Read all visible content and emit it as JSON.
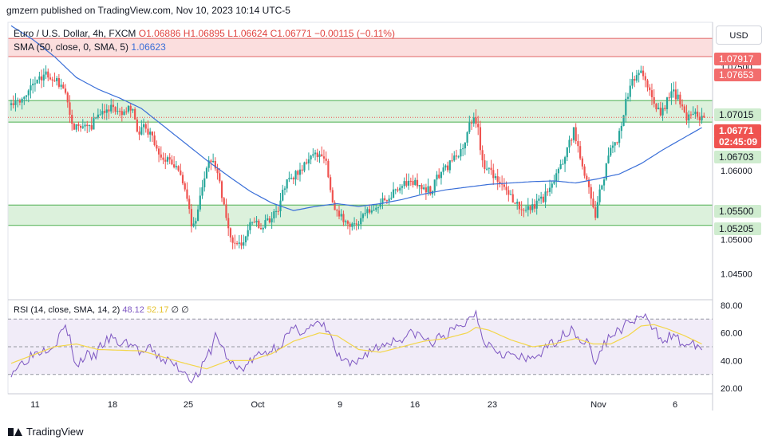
{
  "header": {
    "attribution": "gmzern published on TradingView.com, Nov 10, 2023 10:14 UTC-5"
  },
  "legend": {
    "symbol": "Euro / U.S. Dollar, 4h, FXCM",
    "open": "O1.06886",
    "high": "H1.06895",
    "low": "L1.06624",
    "close": "C1.06771",
    "change": "−0.00115 (−0.11%)",
    "sma_label": "SMA (50, close, 0, SMA, 5)",
    "sma_value": "1.06623",
    "rsi_label": "RSI (14, close, SMA, 14, 2)",
    "rsi_value": "48.12",
    "rsi_sma_value": "52.17",
    "rsi_extra": "∅ ∅"
  },
  "currency_button": "USD",
  "footer": {
    "brand": "TradingView"
  },
  "colors": {
    "up": "#26a69a",
    "down": "#ef5350",
    "sma": "#3a6fd8",
    "rsi": "#7e57c2",
    "rsi_ma": "#f3d64a",
    "resistance_zone": "#f6c3c3",
    "support_zone": "#c8ebc8",
    "price_badge": "#ef5350"
  },
  "chart_data": {
    "type": "candlestick",
    "price_axis": {
      "ticks": [
        "1.08000",
        "1.07500",
        "1.06000",
        "1.05000",
        "1.04500"
      ],
      "ylim": [
        1.0415,
        1.0815
      ]
    },
    "x_axis": {
      "ticks": [
        "11",
        "18",
        "25",
        "Oct",
        "9",
        "16",
        "23",
        "Nov",
        "6"
      ]
    },
    "zones": [
      {
        "kind": "resistance",
        "from": 1.07653,
        "to": 1.07917,
        "color": "red"
      },
      {
        "kind": "support",
        "from": 1.06703,
        "to": 1.07015,
        "color": "green"
      },
      {
        "kind": "support",
        "from": 1.05205,
        "to": 1.055,
        "color": "green"
      }
    ],
    "level_labels": [
      {
        "text": "1.07917",
        "value": 1.07917,
        "style": "red"
      },
      {
        "text": "1.07653",
        "value": 1.07653,
        "style": "red"
      },
      {
        "text": "1.07015",
        "value": 1.07015,
        "style": "green"
      },
      {
        "text": "1.06771",
        "value": 1.06771,
        "style": "price"
      },
      {
        "text": "02:45:09",
        "value": 1.0665,
        "style": "price"
      },
      {
        "text": "1.06703",
        "value": 1.06703,
        "style": "green"
      },
      {
        "text": "1.05500",
        "value": 1.055,
        "style": "green"
      },
      {
        "text": "1.05205",
        "value": 1.05205,
        "style": "green"
      }
    ],
    "last_price": 1.06771,
    "price_path": [
      [
        0,
        1.0695
      ],
      [
        6,
        1.0705
      ],
      [
        10,
        1.0725
      ],
      [
        14,
        1.0735
      ],
      [
        18,
        1.074
      ],
      [
        22,
        1.073
      ],
      [
        25,
        1.0722
      ],
      [
        28,
        1.0685
      ],
      [
        30,
        1.066
      ],
      [
        34,
        1.0668
      ],
      [
        38,
        1.0665
      ],
      [
        42,
        1.0687
      ],
      [
        45,
        1.069
      ],
      [
        48,
        1.0693
      ],
      [
        50,
        1.0683
      ],
      [
        54,
        1.069
      ],
      [
        57,
        1.0686
      ],
      [
        60,
        1.065
      ],
      [
        62,
        1.0665
      ],
      [
        66,
        1.0648
      ],
      [
        70,
        1.062
      ],
      [
        74,
        1.0615
      ],
      [
        78,
        1.06
      ],
      [
        80,
        1.058
      ],
      [
        82,
        1.056
      ],
      [
        84,
        1.0525
      ],
      [
        86,
        1.053
      ],
      [
        88,
        1.056
      ],
      [
        90,
        1.059
      ],
      [
        92,
        1.061
      ],
      [
        94,
        1.0615
      ],
      [
        96,
        1.06
      ],
      [
        98,
        1.0565
      ],
      [
        100,
        1.053
      ],
      [
        102,
        1.0505
      ],
      [
        104,
        1.0495
      ],
      [
        106,
        1.049
      ],
      [
        108,
        1.049
      ],
      [
        110,
        1.0512
      ],
      [
        112,
        1.053
      ],
      [
        114,
        1.0525
      ],
      [
        116,
        1.052
      ],
      [
        120,
        1.053
      ],
      [
        124,
        1.0545
      ],
      [
        127,
        1.058
      ],
      [
        130,
        1.059
      ],
      [
        134,
        1.0598
      ],
      [
        138,
        1.0615
      ],
      [
        142,
        1.0625
      ],
      [
        146,
        1.061
      ],
      [
        150,
        1.0538
      ],
      [
        154,
        1.053
      ],
      [
        158,
        1.0518
      ],
      [
        162,
        1.053
      ],
      [
        166,
        1.0545
      ],
      [
        170,
        1.055
      ],
      [
        174,
        1.056
      ],
      [
        178,
        1.057
      ],
      [
        182,
        1.058
      ],
      [
        186,
        1.0585
      ],
      [
        190,
        1.0578
      ],
      [
        194,
        1.057
      ],
      [
        198,
        1.0595
      ],
      [
        202,
        1.0605
      ],
      [
        206,
        1.062
      ],
      [
        210,
        1.064
      ],
      [
        212,
        1.0665
      ],
      [
        214,
        1.068
      ],
      [
        216,
        1.066
      ],
      [
        218,
        1.061
      ],
      [
        222,
        1.0595
      ],
      [
        226,
        1.058
      ],
      [
        230,
        1.0565
      ],
      [
        234,
        1.055
      ],
      [
        238,
        1.0545
      ],
      [
        242,
        1.055
      ],
      [
        246,
        1.056
      ],
      [
        250,
        1.058
      ],
      [
        252,
        1.06
      ],
      [
        255,
        1.0612
      ],
      [
        258,
        1.064
      ],
      [
        260,
        1.066
      ],
      [
        262,
        1.0635
      ],
      [
        264,
        1.06
      ],
      [
        266,
        1.0585
      ],
      [
        268,
        1.056
      ],
      [
        270,
        1.053
      ],
      [
        272,
        1.057
      ],
      [
        274,
        1.059
      ],
      [
        276,
        1.062
      ],
      [
        278,
        1.064
      ],
      [
        280,
        1.0645
      ],
      [
        282,
        1.0665
      ],
      [
        284,
        1.07
      ],
      [
        286,
        1.072
      ],
      [
        288,
        1.0735
      ],
      [
        290,
        1.0745
      ],
      [
        292,
        1.074
      ],
      [
        294,
        1.0725
      ],
      [
        296,
        1.071
      ],
      [
        298,
        1.0692
      ],
      [
        300,
        1.068
      ],
      [
        302,
        1.0695
      ],
      [
        304,
        1.071
      ],
      [
        306,
        1.0712
      ],
      [
        308,
        1.0705
      ],
      [
        310,
        1.069
      ],
      [
        312,
        1.0675
      ],
      [
        314,
        1.0682
      ],
      [
        316,
        1.0686
      ],
      [
        318,
        1.06771
      ]
    ],
    "sma_path": [
      [
        0,
        1.081
      ],
      [
        10,
        1.079
      ],
      [
        20,
        1.0765
      ],
      [
        30,
        1.0735
      ],
      [
        40,
        1.0718
      ],
      [
        50,
        1.0705
      ],
      [
        60,
        1.069
      ],
      [
        70,
        1.0665
      ],
      [
        80,
        1.064
      ],
      [
        90,
        1.0615
      ],
      [
        100,
        1.0592
      ],
      [
        110,
        1.057
      ],
      [
        120,
        1.0553
      ],
      [
        130,
        1.0542
      ],
      [
        140,
        1.0548
      ],
      [
        150,
        1.0552
      ],
      [
        160,
        1.0548
      ],
      [
        170,
        1.0552
      ],
      [
        180,
        1.0558
      ],
      [
        190,
        1.0566
      ],
      [
        200,
        1.0572
      ],
      [
        210,
        1.0576
      ],
      [
        220,
        1.058
      ],
      [
        230,
        1.0582
      ],
      [
        240,
        1.0584
      ],
      [
        250,
        1.0585
      ],
      [
        260,
        1.0582
      ],
      [
        265,
        1.0585
      ],
      [
        270,
        1.0588
      ],
      [
        280,
        1.0595
      ],
      [
        290,
        1.061
      ],
      [
        300,
        1.063
      ],
      [
        310,
        1.0648
      ],
      [
        318,
        1.06623
      ]
    ],
    "rsi": {
      "ylim": [
        16,
        84
      ],
      "ticks": [
        "80.00",
        "60.00",
        "40.00",
        "20.00"
      ],
      "upper_band": 70,
      "lower_band": 30,
      "mid": 50,
      "path": [
        [
          0,
          32
        ],
        [
          10,
          45
        ],
        [
          20,
          52
        ],
        [
          25,
          65
        ],
        [
          28,
          50
        ],
        [
          30,
          35
        ],
        [
          34,
          44
        ],
        [
          38,
          42
        ],
        [
          42,
          52
        ],
        [
          46,
          56
        ],
        [
          50,
          52
        ],
        [
          54,
          53
        ],
        [
          57,
          50
        ],
        [
          60,
          45
        ],
        [
          64,
          48
        ],
        [
          68,
          42
        ],
        [
          72,
          40
        ],
        [
          76,
          36
        ],
        [
          80,
          32
        ],
        [
          84,
          26
        ],
        [
          88,
          35
        ],
        [
          92,
          48
        ],
        [
          94,
          58
        ],
        [
          96,
          54
        ],
        [
          100,
          40
        ],
        [
          104,
          34
        ],
        [
          108,
          36
        ],
        [
          112,
          42
        ],
        [
          116,
          45
        ],
        [
          120,
          48
        ],
        [
          124,
          52
        ],
        [
          127,
          58
        ],
        [
          130,
          62
        ],
        [
          134,
          62
        ],
        [
          138,
          64
        ],
        [
          142,
          66
        ],
        [
          146,
          62
        ],
        [
          150,
          44
        ],
        [
          154,
          38
        ],
        [
          158,
          36
        ],
        [
          162,
          44
        ],
        [
          166,
          48
        ],
        [
          170,
          50
        ],
        [
          174,
          54
        ],
        [
          178,
          55
        ],
        [
          182,
          58
        ],
        [
          186,
          60
        ],
        [
          190,
          56
        ],
        [
          194,
          52
        ],
        [
          198,
          58
        ],
        [
          202,
          60
        ],
        [
          206,
          64
        ],
        [
          210,
          68
        ],
        [
          212,
          73
        ],
        [
          214,
          75
        ],
        [
          216,
          64
        ],
        [
          218,
          54
        ],
        [
          222,
          50
        ],
        [
          226,
          46
        ],
        [
          230,
          44
        ],
        [
          234,
          42
        ],
        [
          238,
          40
        ],
        [
          242,
          44
        ],
        [
          246,
          48
        ],
        [
          250,
          54
        ],
        [
          254,
          58
        ],
        [
          258,
          64
        ],
        [
          262,
          55
        ],
        [
          266,
          52
        ],
        [
          268,
          42
        ],
        [
          270,
          38
        ],
        [
          272,
          50
        ],
        [
          276,
          58
        ],
        [
          280,
          62
        ],
        [
          284,
          67
        ],
        [
          288,
          70
        ],
        [
          290,
          72
        ],
        [
          292,
          70
        ],
        [
          296,
          62
        ],
        [
          300,
          56
        ],
        [
          304,
          58
        ],
        [
          308,
          54
        ],
        [
          312,
          50
        ],
        [
          316,
          52
        ],
        [
          318,
          48
        ]
      ],
      "ma_path": [
        [
          0,
          38
        ],
        [
          20,
          50
        ],
        [
          30,
          52
        ],
        [
          40,
          48
        ],
        [
          60,
          47
        ],
        [
          80,
          38
        ],
        [
          90,
          34
        ],
        [
          100,
          40
        ],
        [
          110,
          40
        ],
        [
          120,
          45
        ],
        [
          130,
          54
        ],
        [
          142,
          60
        ],
        [
          150,
          58
        ],
        [
          160,
          48
        ],
        [
          170,
          46
        ],
        [
          180,
          50
        ],
        [
          190,
          54
        ],
        [
          200,
          56
        ],
        [
          210,
          60
        ],
        [
          214,
          64
        ],
        [
          220,
          62
        ],
        [
          230,
          55
        ],
        [
          240,
          50
        ],
        [
          250,
          52
        ],
        [
          260,
          56
        ],
        [
          268,
          52
        ],
        [
          276,
          52
        ],
        [
          284,
          58
        ],
        [
          290,
          65
        ],
        [
          296,
          66
        ],
        [
          302,
          63
        ],
        [
          310,
          58
        ],
        [
          318,
          52
        ]
      ]
    }
  }
}
